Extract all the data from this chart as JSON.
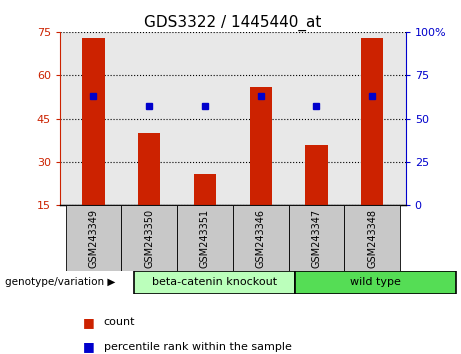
{
  "title": "GDS3322 / 1445440_at",
  "categories": [
    "GSM243349",
    "GSM243350",
    "GSM243351",
    "GSM243346",
    "GSM243347",
    "GSM243348"
  ],
  "bar_values": [
    73,
    40,
    26,
    56,
    36,
    73
  ],
  "percentile_values": [
    63,
    57,
    57,
    63,
    57,
    63
  ],
  "bar_color": "#cc2200",
  "percentile_color": "#0000cc",
  "ylim_left": [
    15,
    75
  ],
  "ylim_right": [
    0,
    100
  ],
  "yticks_left": [
    15,
    30,
    45,
    60,
    75
  ],
  "yticks_right": [
    0,
    25,
    50,
    75,
    100
  ],
  "ytick_labels_right": [
    "0",
    "25",
    "50",
    "75",
    "100%"
  ],
  "group1_label": "beta-catenin knockout",
  "group2_label": "wild type",
  "group1_indices": [
    0,
    1,
    2
  ],
  "group2_indices": [
    3,
    4,
    5
  ],
  "group1_color": "#bbffbb",
  "group2_color": "#55dd55",
  "genotype_label": "genotype/variation",
  "legend_count_label": "count",
  "legend_percentile_label": "percentile rank within the sample",
  "bg_plot_color": "#e8e8e8",
  "bg_label_color": "#c8c8c8",
  "title_fontsize": 11,
  "tick_fontsize": 8,
  "bar_width": 0.4
}
